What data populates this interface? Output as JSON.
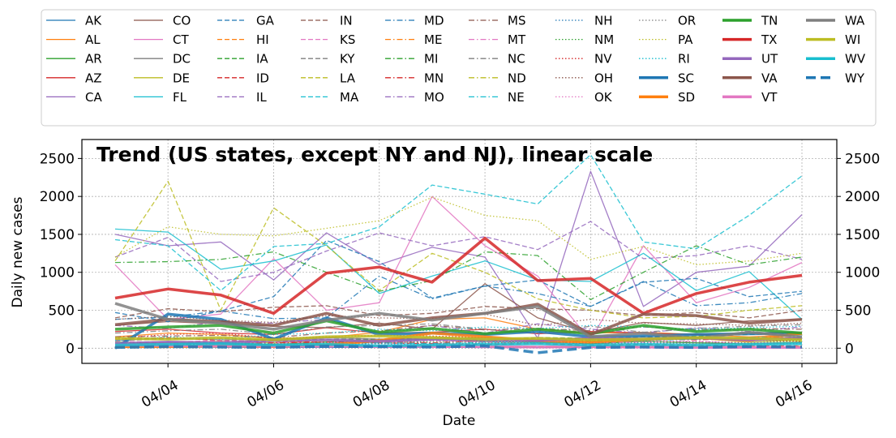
{
  "chart_data": {
    "type": "line",
    "title": "Trend (US states, except NY and NJ), linear scale",
    "xlabel": "Date",
    "ylabel": "Daily new cases",
    "x": [
      "04/03",
      "04/04",
      "04/05",
      "04/06",
      "04/07",
      "04/08",
      "04/09",
      "04/10",
      "04/11",
      "04/12",
      "04/13",
      "04/14",
      "04/15",
      "04/16"
    ],
    "x_tick_labels": [
      "04/04",
      "04/06",
      "04/08",
      "04/10",
      "04/12",
      "04/14",
      "04/16"
    ],
    "y_ticks": [
      0,
      500,
      1000,
      1500,
      2000,
      2500
    ],
    "ylim": [
      -200,
      2750
    ],
    "grid": true,
    "legend_placement": "top",
    "series": [
      {
        "name": "AK",
        "color": "#1f77b4",
        "dash": "solid",
        "width": 1.3,
        "values": [
          10,
          15,
          12,
          10,
          11,
          9,
          12,
          8,
          10,
          8,
          9,
          7,
          8,
          7
        ]
      },
      {
        "name": "AL",
        "color": "#ff7f0e",
        "dash": "solid",
        "width": 1.3,
        "values": [
          150,
          200,
          180,
          130,
          140,
          210,
          380,
          400,
          250,
          200,
          210,
          180,
          150,
          180
        ]
      },
      {
        "name": "AR",
        "color": "#2ca02c",
        "dash": "solid",
        "width": 1.3,
        "values": [
          80,
          70,
          60,
          50,
          80,
          100,
          120,
          90,
          80,
          60,
          90,
          70,
          60,
          80
        ]
      },
      {
        "name": "AZ",
        "color": "#d62728",
        "dash": "solid",
        "width": 1.3,
        "values": [
          220,
          250,
          200,
          180,
          270,
          200,
          210,
          250,
          190,
          220,
          200,
          180,
          200,
          210
        ]
      },
      {
        "name": "CA",
        "color": "#9467bd",
        "dash": "solid",
        "width": 1.3,
        "values": [
          1500,
          1350,
          1400,
          900,
          1520,
          1100,
          1330,
          1200,
          130,
          2330,
          550,
          1000,
          1080,
          1760
        ]
      },
      {
        "name": "CO",
        "color": "#8c564b",
        "dash": "solid",
        "width": 1.3,
        "values": [
          300,
          350,
          320,
          290,
          270,
          330,
          250,
          850,
          400,
          200,
          340,
          300,
          360,
          380
        ]
      },
      {
        "name": "CT",
        "color": "#e377c2",
        "dash": "solid",
        "width": 1.3,
        "values": [
          1100,
          380,
          450,
          1180,
          500,
          600,
          2000,
          1350,
          950,
          100,
          1350,
          600,
          800,
          1130
        ]
      },
      {
        "name": "DC",
        "color": "#7f7f7f",
        "dash": "solid",
        "width": 1.3,
        "values": [
          100,
          130,
          110,
          120,
          140,
          120,
          130,
          140,
          120,
          130,
          110,
          120,
          140,
          130
        ]
      },
      {
        "name": "DE",
        "color": "#bcbd22",
        "dash": "solid",
        "width": 1.3,
        "values": [
          50,
          80,
          90,
          70,
          100,
          110,
          150,
          120,
          110,
          90,
          100,
          130,
          80,
          110
        ]
      },
      {
        "name": "FL",
        "color": "#17becf",
        "dash": "solid",
        "width": 1.3,
        "values": [
          1570,
          1530,
          1040,
          1150,
          1360,
          720,
          950,
          1150,
          900,
          880,
          1250,
          760,
          1010,
          380
        ]
      },
      {
        "name": "GA",
        "color": "#1f77b4",
        "dash": "dashed",
        "width": 1.3,
        "values": [
          470,
          350,
          490,
          680,
          1420,
          1140,
          660,
          820,
          900,
          550,
          870,
          920,
          680,
          750
        ]
      },
      {
        "name": "HI",
        "color": "#ff7f0e",
        "dash": "dashed",
        "width": 1.3,
        "values": [
          30,
          25,
          35,
          20,
          30,
          25,
          20,
          15,
          20,
          15,
          10,
          12,
          15,
          10
        ]
      },
      {
        "name": "IA",
        "color": "#2ca02c",
        "dash": "dashed",
        "width": 1.3,
        "values": [
          60,
          70,
          80,
          100,
          120,
          110,
          130,
          100,
          140,
          130,
          150,
          160,
          180,
          190
        ]
      },
      {
        "name": "ID",
        "color": "#d62728",
        "dash": "dashed",
        "width": 1.3,
        "values": [
          120,
          140,
          100,
          90,
          80,
          70,
          60,
          50,
          60,
          40,
          50,
          40,
          35,
          30
        ]
      },
      {
        "name": "IL",
        "color": "#9467bd",
        "dash": "dashed",
        "width": 1.3,
        "values": [
          1200,
          1460,
          880,
          1000,
          1280,
          1520,
          1350,
          1470,
          1300,
          1670,
          1180,
          1220,
          1350,
          1170
        ]
      },
      {
        "name": "IN",
        "color": "#8c564b",
        "dash": "dashed",
        "width": 1.3,
        "values": [
          400,
          520,
          480,
          540,
          560,
          430,
          460,
          550,
          520,
          500,
          430,
          470,
          400,
          500
        ]
      },
      {
        "name": "KS",
        "color": "#e377c2",
        "dash": "dashed",
        "width": 1.3,
        "values": [
          90,
          80,
          100,
          70,
          80,
          90,
          100,
          80,
          60,
          70,
          80,
          90,
          60,
          70
        ]
      },
      {
        "name": "KY",
        "color": "#7f7f7f",
        "dash": "dashed",
        "width": 1.3,
        "values": [
          100,
          120,
          130,
          110,
          140,
          120,
          130,
          110,
          140,
          120,
          150,
          130,
          140,
          120
        ]
      },
      {
        "name": "LA",
        "color": "#bcbd22",
        "dash": "dashed",
        "width": 1.3,
        "values": [
          1150,
          2200,
          500,
          1850,
          1350,
          760,
          1250,
          1000,
          650,
          500,
          400,
          420,
          500,
          560
        ]
      },
      {
        "name": "MA",
        "color": "#17becf",
        "dash": "dashed",
        "width": 1.3,
        "values": [
          1430,
          1350,
          760,
          1340,
          1380,
          1600,
          2150,
          2030,
          1900,
          2550,
          1400,
          1310,
          1750,
          2270
        ]
      },
      {
        "name": "MD",
        "color": "#1f77b4",
        "dash": "dashdot",
        "width": 1.3,
        "values": [
          380,
          410,
          490,
          390,
          400,
          950,
          650,
          820,
          720,
          550,
          880,
          560,
          600,
          720
        ]
      },
      {
        "name": "ME",
        "color": "#ff7f0e",
        "dash": "dashdot",
        "width": 1.3,
        "values": [
          30,
          25,
          20,
          30,
          25,
          20,
          15,
          20,
          15,
          20,
          10,
          15,
          10,
          12
        ]
      },
      {
        "name": "MI",
        "color": "#2ca02c",
        "dash": "dashdot",
        "width": 1.3,
        "values": [
          1130,
          1140,
          1170,
          1270,
          1000,
          750,
          890,
          1270,
          1220,
          640,
          1000,
          1350,
          1100,
          1200
        ]
      },
      {
        "name": "MN",
        "color": "#d62728",
        "dash": "dashdot",
        "width": 1.3,
        "values": [
          40,
          50,
          60,
          70,
          80,
          90,
          70,
          100,
          110,
          100,
          120,
          110,
          130,
          140
        ]
      },
      {
        "name": "MO",
        "color": "#9467bd",
        "dash": "dashdot",
        "width": 1.3,
        "values": [
          300,
          260,
          350,
          330,
          380,
          200,
          300,
          200,
          320,
          250,
          200,
          270,
          220,
          280
        ]
      },
      {
        "name": "MS",
        "color": "#8c564b",
        "dash": "dashdot",
        "width": 1.3,
        "values": [
          150,
          160,
          170,
          140,
          200,
          230,
          300,
          240,
          260,
          230,
          280,
          240,
          260,
          250
        ]
      },
      {
        "name": "MT",
        "color": "#e377c2",
        "dash": "dashdot",
        "width": 1.3,
        "values": [
          20,
          15,
          20,
          10,
          15,
          10,
          12,
          8,
          10,
          8,
          6,
          5,
          8,
          5
        ]
      },
      {
        "name": "NC",
        "color": "#7f7f7f",
        "dash": "dashdot",
        "width": 1.3,
        "values": [
          200,
          230,
          250,
          180,
          280,
          300,
          320,
          250,
          200,
          290,
          210,
          260,
          290,
          310
        ]
      },
      {
        "name": "ND",
        "color": "#bcbd22",
        "dash": "dashdot",
        "width": 1.3,
        "values": [
          20,
          25,
          20,
          15,
          30,
          20,
          25,
          20,
          15,
          20,
          25,
          15,
          20,
          25
        ]
      },
      {
        "name": "NE",
        "color": "#17becf",
        "dash": "dashdot",
        "width": 1.3,
        "values": [
          30,
          40,
          50,
          45,
          60,
          70,
          60,
          80,
          90,
          85,
          100,
          120,
          140,
          160
        ]
      },
      {
        "name": "NH",
        "color": "#1f77b4",
        "dash": "dotted",
        "width": 1.3,
        "values": [
          40,
          50,
          60,
          55,
          45,
          60,
          50,
          70,
          80,
          60,
          70,
          65,
          55,
          60
        ]
      },
      {
        "name": "NM",
        "color": "#2ca02c",
        "dash": "dotted",
        "width": 1.3,
        "values": [
          40,
          50,
          60,
          45,
          80,
          70,
          90,
          80,
          70,
          100,
          90,
          80,
          70,
          100
        ]
      },
      {
        "name": "NV",
        "color": "#d62728",
        "dash": "dotted",
        "width": 1.3,
        "values": [
          130,
          180,
          200,
          130,
          150,
          170,
          160,
          140,
          110,
          120,
          100,
          130,
          110,
          90
        ]
      },
      {
        "name": "OH",
        "color": "#8c564b",
        "dash": "dotted",
        "width": 1.3,
        "values": [
          380,
          420,
          370,
          340,
          430,
          400,
          390,
          450,
          300,
          380,
          330,
          320,
          300,
          330
        ]
      },
      {
        "name": "OK",
        "color": "#e377c2",
        "dash": "dotted",
        "width": 1.3,
        "values": [
          70,
          80,
          90,
          100,
          110,
          90,
          100,
          80,
          90,
          80,
          100,
          90,
          80,
          70
        ]
      },
      {
        "name": "OR",
        "color": "#7f7f7f",
        "dash": "dotted",
        "width": 1.3,
        "values": [
          60,
          70,
          80,
          60,
          70,
          80,
          70,
          60,
          80,
          70,
          60,
          70,
          60,
          80
        ]
      },
      {
        "name": "PA",
        "color": "#bcbd22",
        "dash": "dotted",
        "width": 1.3,
        "values": [
          1200,
          1600,
          1500,
          1480,
          1580,
          1680,
          1990,
          1750,
          1680,
          1170,
          1340,
          1100,
          1150,
          1250
        ]
      },
      {
        "name": "RI",
        "color": "#17becf",
        "dash": "dotted",
        "width": 1.3,
        "values": [
          100,
          150,
          120,
          180,
          200,
          250,
          230,
          280,
          260,
          300,
          280,
          250,
          270,
          290
        ]
      },
      {
        "name": "SC",
        "color": "#1f77b4",
        "dash": "solid",
        "width": 3.5,
        "values": [
          0,
          450,
          380,
          120,
          400,
          180,
          200,
          180,
          220,
          150,
          160,
          180,
          190,
          200
        ]
      },
      {
        "name": "SD",
        "color": "#ff7f0e",
        "dash": "solid",
        "width": 3.5,
        "values": [
          20,
          20,
          30,
          20,
          40,
          100,
          200,
          150,
          100,
          80,
          120,
          140,
          100,
          200
        ]
      },
      {
        "name": "TN",
        "color": "#2ca02c",
        "dash": "solid",
        "width": 3.5,
        "values": [
          250,
          280,
          300,
          200,
          360,
          210,
          260,
          190,
          250,
          190,
          300,
          220,
          250,
          200
        ]
      },
      {
        "name": "TX",
        "color": "#d62728",
        "dash": "solid",
        "width": 3.5,
        "values": [
          660,
          780,
          700,
          460,
          990,
          1070,
          870,
          1450,
          890,
          920,
          460,
          720,
          870,
          960
        ]
      },
      {
        "name": "UT",
        "color": "#9467bd",
        "dash": "solid",
        "width": 3.5,
        "values": [
          60,
          80,
          70,
          100,
          110,
          90,
          120,
          110,
          100,
          130,
          120,
          140,
          110,
          130
        ]
      },
      {
        "name": "VA",
        "color": "#8c564b",
        "dash": "solid",
        "width": 3.5,
        "values": [
          310,
          380,
          350,
          300,
          460,
          300,
          400,
          460,
          580,
          180,
          450,
          430,
          330,
          380
        ]
      },
      {
        "name": "VT",
        "color": "#e377c2",
        "dash": "solid",
        "width": 3.5,
        "values": [
          40,
          35,
          30,
          25,
          30,
          20,
          25,
          20,
          15,
          20,
          15,
          12,
          10,
          10
        ]
      },
      {
        "name": "WA",
        "color": "#7f7f7f",
        "dash": "solid",
        "width": 3.5,
        "values": [
          590,
          380,
          330,
          250,
          370,
          460,
          370,
          460,
          550,
          150,
          200,
          130,
          210,
          150
        ]
      },
      {
        "name": "WI",
        "color": "#bcbd22",
        "dash": "solid",
        "width": 3.5,
        "values": [
          130,
          120,
          140,
          110,
          150,
          160,
          140,
          120,
          130,
          110,
          120,
          140,
          130,
          110
        ]
      },
      {
        "name": "WV",
        "color": "#17becf",
        "dash": "solid",
        "width": 3.5,
        "values": [
          40,
          50,
          60,
          40,
          50,
          30,
          40,
          50,
          60,
          40,
          50,
          40,
          50,
          60
        ]
      },
      {
        "name": "WY",
        "color": "#1f77b4",
        "dash": "dashed",
        "width": 3.5,
        "values": [
          10,
          20,
          15,
          10,
          25,
          20,
          15,
          30,
          -60,
          10,
          15,
          10,
          20,
          15
        ]
      }
    ]
  }
}
